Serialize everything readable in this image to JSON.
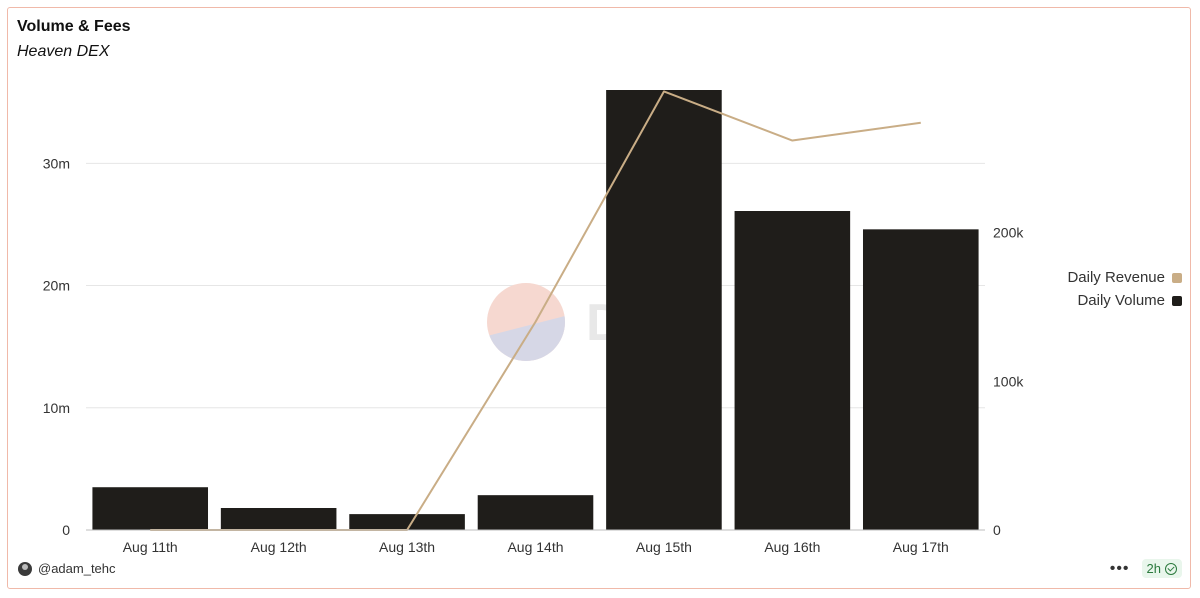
{
  "header": {
    "title": "Volume & Fees",
    "subtitle": "Heaven DEX"
  },
  "watermark": {
    "text": "Dune"
  },
  "footer": {
    "author": "@adam_tehc",
    "age": "2h"
  },
  "colors": {
    "volume": "#1f1d1a",
    "revenue": "#c9ad86",
    "border": "#f0b9a9",
    "grid": "#e6e6e6"
  },
  "chart_data": {
    "type": "bar",
    "categories": [
      "Aug 11th",
      "Aug 12th",
      "Aug 13th",
      "Aug 14th",
      "Aug 15th",
      "Aug 16th",
      "Aug 17th"
    ],
    "series": [
      {
        "name": "Daily Volume",
        "type": "bar",
        "axis": "left",
        "values": [
          3500000,
          1800000,
          1300000,
          2850000,
          36000000,
          26100000,
          24600000
        ]
      },
      {
        "name": "Daily Revenue",
        "type": "line",
        "axis": "right",
        "values": [
          0,
          0,
          0,
          140000,
          295000,
          262000,
          274000
        ]
      }
    ],
    "y_left": {
      "ticks": [
        0,
        10000000,
        20000000,
        30000000
      ],
      "tick_labels": [
        "0",
        "10m",
        "20m",
        "30m"
      ],
      "ylim": [
        0,
        36000000
      ]
    },
    "y_right": {
      "ticks": [
        0,
        100000,
        200000
      ],
      "tick_labels": [
        "0",
        "100k",
        "200k"
      ],
      "ylim": [
        0,
        296000
      ]
    },
    "legend": {
      "position": "right",
      "entries": [
        "Daily Revenue",
        "Daily Volume"
      ]
    },
    "grid": true
  }
}
